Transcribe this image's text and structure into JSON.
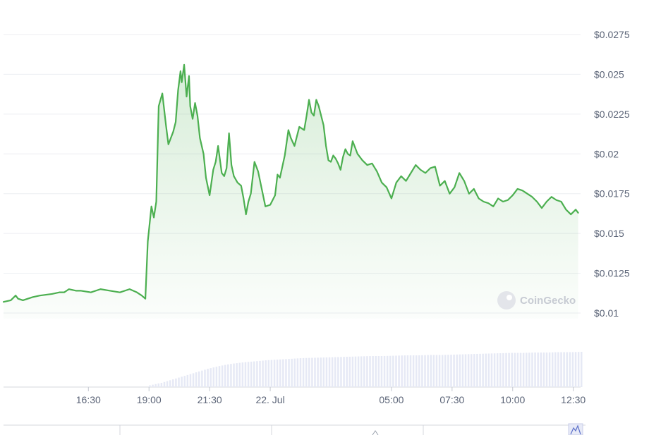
{
  "chart_data": {
    "type": "area",
    "y_ticks": [
      "$0.0275",
      "$0.025",
      "$0.0225",
      "$0.02",
      "$0.0175",
      "$0.015",
      "$0.0125",
      "$0.01"
    ],
    "y_tick_values": [
      0.0275,
      0.025,
      0.0225,
      0.02,
      0.0175,
      0.015,
      0.0125,
      0.01
    ],
    "ylim": [
      0.0095,
      0.0285
    ],
    "x_ticks": [
      "16:30",
      "19:00",
      "21:30",
      "22. Jul",
      "05:00",
      "07:30",
      "10:00",
      "12:30"
    ],
    "x_tick_hours": [
      16.5,
      19.0,
      21.5,
      24.0,
      29.0,
      31.5,
      34.0,
      36.5
    ],
    "xlim": [
      13.0,
      36.8
    ],
    "grid": true,
    "line_color": "#4caf50",
    "fill_color": "#8bc98d",
    "volume_color": "#e6e9f5",
    "series": [
      {
        "x": [
          13.0,
          13.3,
          13.5,
          13.6,
          13.8,
          14.2,
          14.5,
          15.0,
          15.3,
          15.5,
          15.7,
          16.0,
          16.2,
          16.6,
          17.0,
          17.4,
          17.8,
          18.2,
          18.5,
          18.7,
          18.85,
          18.95,
          19.1,
          19.2,
          19.3,
          19.4,
          19.55,
          19.7,
          19.8,
          19.9,
          20.0,
          20.1,
          20.2,
          20.3,
          20.35,
          20.45,
          20.55,
          20.65,
          20.7,
          20.8,
          20.9,
          21.0,
          21.1,
          21.25,
          21.35,
          21.5,
          21.65,
          21.75,
          21.85,
          22.0,
          22.1,
          22.2,
          22.3,
          22.4,
          22.5,
          22.65,
          22.8,
          22.9,
          23.0,
          23.1,
          23.2,
          23.35,
          23.5,
          23.65,
          23.8,
          24.0,
          24.2,
          24.3,
          24.4,
          24.6,
          24.75,
          24.85,
          25.0,
          25.2,
          25.4,
          25.5,
          25.6,
          25.7,
          25.8,
          25.9,
          26.0,
          26.1,
          26.2,
          26.3,
          26.4,
          26.5,
          26.6,
          26.7,
          26.8,
          26.9,
          27.0,
          27.1,
          27.2,
          27.3,
          27.4,
          27.6,
          27.8,
          28.0,
          28.2,
          28.4,
          28.6,
          28.8,
          29.0,
          29.2,
          29.4,
          29.6,
          29.8,
          30.0,
          30.2,
          30.4,
          30.6,
          30.8,
          31.0,
          31.2,
          31.4,
          31.6,
          31.8,
          32.0,
          32.2,
          32.4,
          32.6,
          32.8,
          33.0,
          33.2,
          33.4,
          33.6,
          33.8,
          34.0,
          34.2,
          34.4,
          34.6,
          34.8,
          35.0,
          35.2,
          35.4,
          35.6,
          35.8,
          36.0,
          36.2,
          36.4,
          36.6,
          36.7
        ],
        "y": [
          0.0107,
          0.0108,
          0.0111,
          0.0109,
          0.0108,
          0.011,
          0.0111,
          0.0112,
          0.0113,
          0.0113,
          0.0115,
          0.0114,
          0.0114,
          0.0113,
          0.0115,
          0.0114,
          0.0113,
          0.0115,
          0.0113,
          0.0111,
          0.0109,
          0.0145,
          0.0167,
          0.016,
          0.017,
          0.023,
          0.0238,
          0.0218,
          0.0206,
          0.021,
          0.0214,
          0.022,
          0.024,
          0.0252,
          0.0245,
          0.0256,
          0.0236,
          0.0249,
          0.023,
          0.0222,
          0.0232,
          0.0224,
          0.021,
          0.02,
          0.0185,
          0.0174,
          0.019,
          0.0195,
          0.0205,
          0.0188,
          0.0186,
          0.0191,
          0.0213,
          0.0193,
          0.0186,
          0.0182,
          0.018,
          0.0172,
          0.0162,
          0.017,
          0.0175,
          0.0195,
          0.0189,
          0.0178,
          0.0167,
          0.0168,
          0.0174,
          0.0187,
          0.0185,
          0.0199,
          0.0215,
          0.021,
          0.0205,
          0.0217,
          0.0215,
          0.0224,
          0.0234,
          0.0226,
          0.0224,
          0.0234,
          0.023,
          0.0224,
          0.0218,
          0.0205,
          0.0196,
          0.0195,
          0.0199,
          0.0197,
          0.0194,
          0.019,
          0.0198,
          0.0203,
          0.02,
          0.0199,
          0.0208,
          0.02,
          0.0196,
          0.0193,
          0.0194,
          0.0189,
          0.0182,
          0.0179,
          0.0172,
          0.0182,
          0.0186,
          0.0183,
          0.0188,
          0.0193,
          0.019,
          0.0188,
          0.0191,
          0.0192,
          0.018,
          0.0183,
          0.0175,
          0.0179,
          0.0188,
          0.0183,
          0.0175,
          0.0178,
          0.0172,
          0.017,
          0.0169,
          0.0167,
          0.0172,
          0.017,
          0.0171,
          0.0174,
          0.0178,
          0.0177,
          0.0175,
          0.0173,
          0.017,
          0.0166,
          0.017,
          0.0173,
          0.0171,
          0.017,
          0.0165,
          0.0162,
          0.0165,
          0.0163
        ]
      }
    ],
    "volume": {
      "start_hour": 19.0,
      "levels": [
        0.05,
        0.12,
        0.22,
        0.32,
        0.42,
        0.52,
        0.6,
        0.66,
        0.7,
        0.73,
        0.76,
        0.78,
        0.8,
        0.82,
        0.83,
        0.84,
        0.85,
        0.86,
        0.87,
        0.88,
        0.88,
        0.89,
        0.9,
        0.9,
        0.91,
        0.91,
        0.92,
        0.93,
        0.94,
        0.95,
        0.96,
        0.97,
        0.97,
        0.98,
        0.98,
        0.99,
        0.99,
        1.0
      ]
    }
  },
  "watermark": {
    "label": "CoinGecko",
    "icon": "coingecko-logo"
  },
  "navigator": {
    "mark": "mini-chart-icon"
  }
}
